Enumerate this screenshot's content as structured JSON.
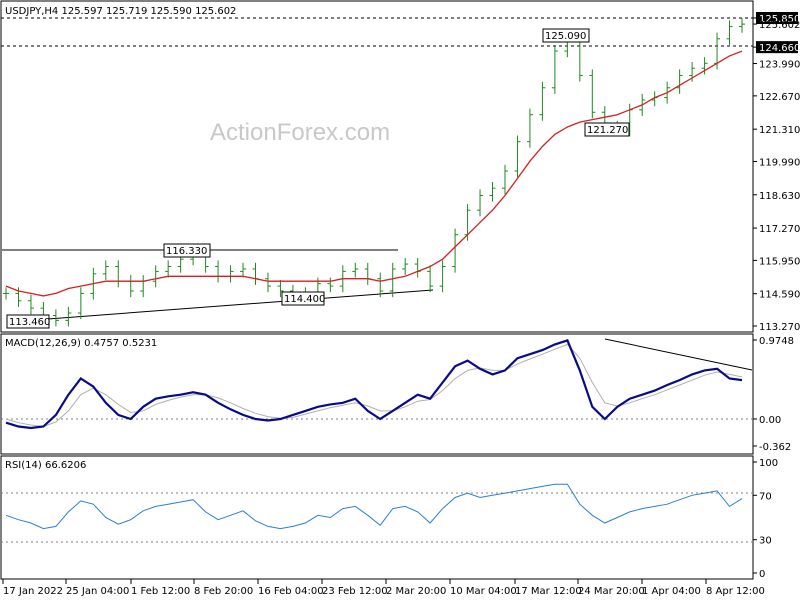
{
  "chart_data": {
    "type": "ohlc",
    "symbol_header": "USDJPY,H4  125.597 125.719 125.590 125.602",
    "watermark": "ActionForex.com",
    "price_axis_ticks": [
      "125.850",
      "125.602",
      "124.660",
      "123.990",
      "122.670",
      "121.310",
      "119.990",
      "118.630",
      "117.270",
      "115.950",
      "114.590",
      "113.270"
    ],
    "x_tick_labels": [
      "17 Jan 2022",
      "25 Jan 04:00",
      "1 Feb 12:00",
      "8 Feb 20:00",
      "16 Feb 04:00",
      "23 Feb 12:00",
      "2 Mar 20:00",
      "10 Mar 04:00",
      "17 Mar 12:00",
      "24 Mar 20:00",
      "1 Apr 04:00",
      "8 Apr 12:00"
    ],
    "annotations": [
      "116.330",
      "114.400",
      "113.460",
      "125.090",
      "121.270"
    ],
    "price_close_approx": [
      114.6,
      114.3,
      114.0,
      113.7,
      113.5,
      113.8,
      114.6,
      115.4,
      115.7,
      115.1,
      114.7,
      115.1,
      115.5,
      115.7,
      116.0,
      116.3,
      115.7,
      115.3,
      115.5,
      115.6,
      115.2,
      114.9,
      114.7,
      114.6,
      114.6,
      115.0,
      114.9,
      115.5,
      115.6,
      115.2,
      114.7,
      115.6,
      115.8,
      115.5,
      114.9,
      115.7,
      117.0,
      118.0,
      118.6,
      118.9,
      119.6,
      120.8,
      121.9,
      123.0,
      124.5,
      125.09,
      123.5,
      122.0,
      121.4,
      121.27,
      122.1,
      122.5,
      122.6,
      123.0,
      123.5,
      123.8,
      124.0,
      125.0,
      125.5,
      125.6
    ],
    "ma_approx": [
      114.9,
      114.7,
      114.6,
      114.5,
      114.6,
      114.8,
      114.9,
      115.0,
      115.1,
      115.1,
      115.1,
      115.1,
      115.2,
      115.3,
      115.3,
      115.3,
      115.3,
      115.3,
      115.3,
      115.3,
      115.2,
      115.1,
      115.1,
      115.1,
      115.1,
      115.1,
      115.1,
      115.2,
      115.2,
      115.2,
      115.1,
      115.2,
      115.3,
      115.5,
      115.7,
      116.0,
      116.5,
      117.0,
      117.5,
      118.0,
      118.6,
      119.3,
      120.0,
      120.6,
      121.1,
      121.4,
      121.6,
      121.7,
      121.8,
      121.9,
      122.1,
      122.3,
      122.6,
      122.8,
      123.1,
      123.4,
      123.7,
      124.0,
      124.3,
      124.5
    ],
    "macd": {
      "label": "MACD(12,26,9) 0.4757 0.5231",
      "ticks": [
        "0.9748",
        "0.00",
        "-0.362"
      ],
      "main_approx": [
        -0.05,
        -0.1,
        -0.12,
        -0.1,
        0.05,
        0.3,
        0.5,
        0.4,
        0.2,
        0.05,
        0.0,
        0.15,
        0.25,
        0.28,
        0.3,
        0.33,
        0.3,
        0.2,
        0.12,
        0.05,
        0.0,
        -0.02,
        0.0,
        0.05,
        0.1,
        0.15,
        0.18,
        0.2,
        0.25,
        0.1,
        0.0,
        0.1,
        0.2,
        0.3,
        0.25,
        0.45,
        0.65,
        0.72,
        0.62,
        0.55,
        0.6,
        0.75,
        0.8,
        0.85,
        0.92,
        0.97,
        0.6,
        0.15,
        0.0,
        0.15,
        0.25,
        0.3,
        0.35,
        0.42,
        0.48,
        0.55,
        0.6,
        0.62,
        0.5,
        0.48
      ],
      "signal_approx": [
        0.0,
        -0.05,
        -0.08,
        -0.1,
        -0.04,
        0.1,
        0.3,
        0.38,
        0.3,
        0.18,
        0.08,
        0.1,
        0.18,
        0.23,
        0.27,
        0.3,
        0.3,
        0.26,
        0.2,
        0.13,
        0.07,
        0.03,
        0.01,
        0.02,
        0.06,
        0.1,
        0.14,
        0.17,
        0.2,
        0.16,
        0.1,
        0.1,
        0.15,
        0.22,
        0.24,
        0.35,
        0.5,
        0.6,
        0.63,
        0.6,
        0.6,
        0.68,
        0.74,
        0.8,
        0.86,
        0.92,
        0.75,
        0.45,
        0.2,
        0.16,
        0.2,
        0.25,
        0.3,
        0.36,
        0.42,
        0.48,
        0.54,
        0.58,
        0.55,
        0.52
      ]
    },
    "rsi": {
      "label": "RSI(14) 66.6206",
      "ticks": [
        "100",
        "70",
        "30",
        "0"
      ],
      "values_approx": [
        52,
        48,
        45,
        40,
        42,
        55,
        65,
        62,
        50,
        44,
        48,
        56,
        60,
        62,
        64,
        66,
        55,
        48,
        52,
        56,
        47,
        42,
        40,
        42,
        45,
        52,
        50,
        58,
        60,
        52,
        43,
        58,
        60,
        55,
        45,
        58,
        68,
        72,
        68,
        70,
        72,
        74,
        76,
        78,
        80,
        80,
        62,
        52,
        45,
        50,
        55,
        58,
        60,
        62,
        66,
        70,
        72,
        74,
        60,
        67
      ],
      "levels": [
        70,
        30
      ]
    },
    "colors": {
      "price": "#1f8a1f",
      "ma": "#d42020",
      "macd_main": "#0a0a8a",
      "macd_signal": "#b0b0b0",
      "rsi": "#2b7fd0",
      "axis": "#000000",
      "grid": "#808080"
    }
  }
}
